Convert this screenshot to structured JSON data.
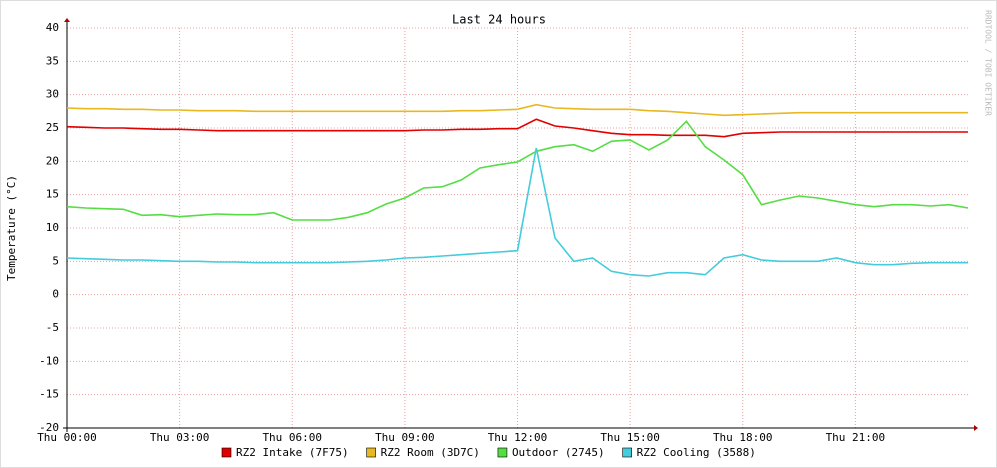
{
  "chart_data": {
    "type": "line",
    "title": "Last 24 hours",
    "y_label": "Temperature (°C)",
    "watermark": "RRDTOOL / TOBI OETIKER",
    "x": [
      0,
      0.5,
      1,
      1.5,
      2,
      2.5,
      3,
      3.5,
      4,
      4.5,
      5,
      5.5,
      6,
      6.5,
      7,
      7.5,
      8,
      8.5,
      9,
      9.5,
      10,
      10.5,
      11,
      11.5,
      12,
      12.5,
      13,
      13.5,
      14,
      14.5,
      15,
      15.5,
      16,
      16.5,
      17,
      17.5,
      18,
      18.5,
      19,
      19.5,
      20,
      20.5,
      21,
      21.5,
      22,
      22.5,
      23,
      23.5,
      24
    ],
    "xlim": [
      0,
      24
    ],
    "xticks": [
      {
        "value": 0,
        "label": "Thu 00:00"
      },
      {
        "value": 3,
        "label": "Thu 03:00"
      },
      {
        "value": 6,
        "label": "Thu 06:00"
      },
      {
        "value": 9,
        "label": "Thu 09:00"
      },
      {
        "value": 12,
        "label": "Thu 12:00"
      },
      {
        "value": 15,
        "label": "Thu 15:00"
      },
      {
        "value": 18,
        "label": "Thu 18:00"
      },
      {
        "value": 21,
        "label": "Thu 21:00"
      }
    ],
    "ylim": [
      -20,
      40
    ],
    "yticks": [
      -20,
      -15,
      -10,
      -5,
      0,
      5,
      10,
      15,
      20,
      25,
      30,
      35,
      40
    ],
    "grid": true,
    "series": [
      {
        "name": "RZ2 Intake (7F75)",
        "color": "#e00000",
        "values": [
          25.2,
          25.1,
          25.0,
          25.0,
          24.9,
          24.8,
          24.8,
          24.7,
          24.6,
          24.6,
          24.6,
          24.6,
          24.6,
          24.6,
          24.6,
          24.6,
          24.6,
          24.6,
          24.6,
          24.7,
          24.7,
          24.8,
          24.8,
          24.9,
          24.9,
          26.3,
          25.3,
          25.0,
          24.6,
          24.2,
          24.0,
          24.0,
          23.9,
          23.9,
          23.9,
          23.7,
          24.2,
          24.3,
          24.4,
          24.4,
          24.4,
          24.4,
          24.4,
          24.4,
          24.4,
          24.4,
          24.4,
          24.4,
          24.4
        ]
      },
      {
        "name": "RZ2 Room (3D7C)",
        "color": "#e8b820",
        "values": [
          28.0,
          27.9,
          27.9,
          27.8,
          27.8,
          27.7,
          27.7,
          27.6,
          27.6,
          27.6,
          27.5,
          27.5,
          27.5,
          27.5,
          27.5,
          27.5,
          27.5,
          27.5,
          27.5,
          27.5,
          27.5,
          27.6,
          27.6,
          27.7,
          27.8,
          28.5,
          28.0,
          27.9,
          27.8,
          27.8,
          27.8,
          27.6,
          27.5,
          27.3,
          27.1,
          26.9,
          27.0,
          27.1,
          27.2,
          27.3,
          27.3,
          27.3,
          27.3,
          27.3,
          27.3,
          27.3,
          27.3,
          27.3,
          27.3
        ]
      },
      {
        "name": "Outdoor (2745)",
        "color": "#55dd44",
        "values": [
          13.2,
          13.0,
          12.9,
          12.8,
          11.9,
          12.0,
          11.7,
          11.9,
          12.1,
          12.0,
          12.0,
          12.3,
          11.2,
          11.2,
          11.2,
          11.6,
          12.3,
          13.6,
          14.5,
          16.0,
          16.2,
          17.2,
          19.0,
          19.5,
          19.9,
          21.5,
          22.2,
          22.5,
          21.5,
          23.0,
          23.2,
          21.7,
          23.2,
          26.0,
          22.2,
          20.2,
          18.0,
          13.5,
          14.2,
          14.8,
          14.5,
          14.0,
          13.5,
          13.2,
          13.5,
          13.5,
          13.3,
          13.5,
          13.0
        ]
      },
      {
        "name": "RZ2 Cooling (3588)",
        "color": "#44ccdd",
        "values": [
          5.5,
          5.4,
          5.3,
          5.2,
          5.2,
          5.1,
          5.0,
          5.0,
          4.9,
          4.9,
          4.8,
          4.8,
          4.8,
          4.8,
          4.8,
          4.9,
          5.0,
          5.2,
          5.5,
          5.6,
          5.8,
          6.0,
          6.2,
          6.4,
          6.6,
          22.0,
          8.5,
          5.0,
          5.5,
          3.5,
          3.0,
          2.8,
          3.3,
          3.3,
          3.0,
          5.5,
          6.0,
          5.2,
          5.0,
          5.0,
          5.0,
          5.5,
          4.8,
          4.5,
          4.5,
          4.7,
          4.8,
          4.8,
          4.8
        ]
      }
    ]
  }
}
